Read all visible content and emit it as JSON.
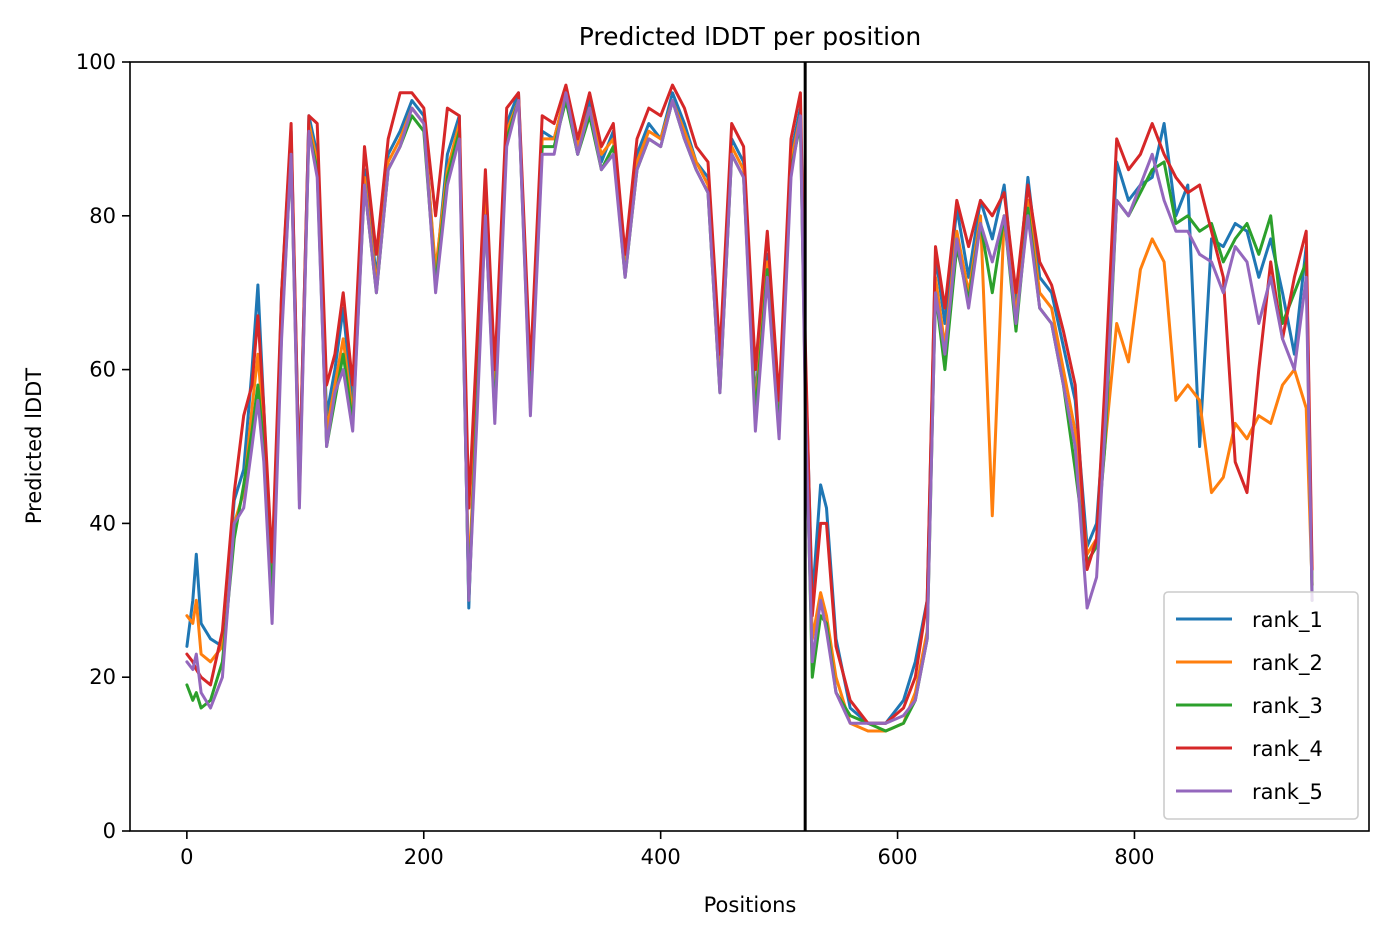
{
  "chart_data": {
    "type": "line",
    "title": "Predicted lDDT per position",
    "xlabel": "Positions",
    "ylabel": "Predicted lDDT",
    "xlim": [
      -48,
      998
    ],
    "ylim": [
      0,
      100
    ],
    "xticks": [
      0,
      200,
      400,
      600,
      800
    ],
    "yticks": [
      0,
      20,
      40,
      60,
      80,
      100
    ],
    "legend_position": "lower-right",
    "vline_x": 522,
    "series": [
      {
        "name": "rank_1",
        "color": "#1f77b4",
        "x": [
          0,
          5,
          8,
          12,
          20,
          30,
          40,
          48,
          55,
          60,
          65,
          72,
          80,
          88,
          95,
          103,
          110,
          118,
          125,
          132,
          140,
          150,
          160,
          170,
          180,
          190,
          200,
          210,
          220,
          230,
          238,
          245,
          252,
          260,
          270,
          280,
          290,
          300,
          310,
          320,
          330,
          340,
          350,
          360,
          370,
          380,
          390,
          400,
          410,
          420,
          430,
          440,
          450,
          460,
          470,
          480,
          490,
          500,
          510,
          518,
          522,
          528,
          535,
          540,
          548,
          560,
          575,
          590,
          605,
          615,
          625,
          632,
          640,
          650,
          660,
          670,
          680,
          690,
          700,
          710,
          720,
          730,
          740,
          750,
          760,
          768,
          775,
          785,
          795,
          805,
          815,
          825,
          835,
          845,
          855,
          865,
          875,
          885,
          895,
          905,
          915,
          925,
          935,
          945,
          950
        ],
        "values": [
          24,
          30,
          36,
          27,
          25,
          24,
          43,
          47,
          60,
          71,
          55,
          30,
          70,
          91,
          45,
          93,
          88,
          54,
          60,
          68,
          55,
          86,
          72,
          88,
          91,
          95,
          93,
          72,
          88,
          93,
          29,
          60,
          84,
          55,
          92,
          96,
          56,
          91,
          90,
          96,
          88,
          95,
          87,
          91,
          73,
          88,
          92,
          90,
          96,
          92,
          87,
          85,
          58,
          90,
          87,
          56,
          75,
          52,
          88,
          94,
          62,
          30,
          45,
          42,
          25,
          16,
          14,
          14,
          17,
          22,
          30,
          75,
          66,
          81,
          72,
          82,
          77,
          84,
          68,
          85,
          72,
          70,
          63,
          56,
          37,
          40,
          55,
          87,
          82,
          84,
          85,
          92,
          80,
          84,
          50,
          77,
          76,
          79,
          78,
          72,
          77,
          70,
          62,
          76,
          32
        ]
      },
      {
        "name": "rank_2",
        "color": "#ff7f0e",
        "x": [
          0,
          5,
          8,
          12,
          20,
          30,
          40,
          48,
          55,
          60,
          65,
          72,
          80,
          88,
          95,
          103,
          110,
          118,
          125,
          132,
          140,
          150,
          160,
          170,
          180,
          190,
          200,
          210,
          220,
          230,
          238,
          245,
          252,
          260,
          270,
          280,
          290,
          300,
          310,
          320,
          330,
          340,
          350,
          360,
          370,
          380,
          390,
          400,
          410,
          420,
          430,
          440,
          450,
          460,
          470,
          480,
          490,
          500,
          510,
          518,
          522,
          528,
          535,
          540,
          548,
          560,
          575,
          590,
          605,
          615,
          625,
          632,
          640,
          650,
          660,
          670,
          680,
          690,
          700,
          710,
          720,
          730,
          740,
          750,
          760,
          768,
          775,
          785,
          795,
          805,
          815,
          825,
          835,
          845,
          855,
          865,
          875,
          885,
          895,
          905,
          915,
          925,
          935,
          945,
          950
        ],
        "values": [
          28,
          27,
          30,
          23,
          22,
          24,
          40,
          44,
          55,
          62,
          52,
          33,
          68,
          89,
          43,
          92,
          87,
          52,
          58,
          64,
          54,
          85,
          71,
          87,
          90,
          94,
          92,
          73,
          86,
          92,
          32,
          58,
          82,
          56,
          91,
          95,
          57,
          90,
          90,
          96,
          89,
          94,
          88,
          90,
          74,
          87,
          91,
          90,
          95,
          91,
          87,
          84,
          60,
          89,
          86,
          55,
          74,
          53,
          87,
          93,
          60,
          25,
          31,
          28,
          20,
          14,
          13,
          13,
          14,
          18,
          26,
          72,
          63,
          78,
          70,
          80,
          41,
          80,
          67,
          82,
          70,
          68,
          60,
          52,
          36,
          38,
          50,
          66,
          61,
          73,
          77,
          74,
          56,
          58,
          56,
          44,
          46,
          53,
          51,
          54,
          53,
          58,
          60,
          55,
          32
        ]
      },
      {
        "name": "rank_3",
        "color": "#2ca02c",
        "x": [
          0,
          5,
          8,
          12,
          20,
          30,
          40,
          48,
          55,
          60,
          65,
          72,
          80,
          88,
          95,
          103,
          110,
          118,
          125,
          132,
          140,
          150,
          160,
          170,
          180,
          190,
          200,
          210,
          220,
          230,
          238,
          245,
          252,
          260,
          270,
          280,
          290,
          300,
          310,
          320,
          330,
          340,
          350,
          360,
          370,
          380,
          390,
          400,
          410,
          420,
          430,
          440,
          450,
          460,
          470,
          480,
          490,
          500,
          510,
          518,
          522,
          528,
          535,
          540,
          548,
          560,
          575,
          590,
          605,
          615,
          625,
          632,
          640,
          650,
          660,
          670,
          680,
          690,
          700,
          710,
          720,
          730,
          740,
          750,
          760,
          768,
          775,
          785,
          795,
          805,
          815,
          825,
          835,
          845,
          855,
          865,
          875,
          885,
          895,
          905,
          915,
          925,
          935,
          945,
          950
        ],
        "values": [
          19,
          17,
          18,
          16,
          17,
          22,
          38,
          45,
          52,
          58,
          50,
          30,
          65,
          88,
          44,
          91,
          86,
          50,
          56,
          62,
          53,
          84,
          70,
          86,
          89,
          93,
          91,
          71,
          85,
          91,
          30,
          56,
          80,
          54,
          90,
          95,
          55,
          89,
          89,
          95,
          88,
          93,
          86,
          89,
          72,
          86,
          90,
          89,
          95,
          90,
          86,
          83,
          57,
          88,
          85,
          54,
          73,
          52,
          86,
          92,
          58,
          20,
          28,
          27,
          18,
          15,
          14,
          13,
          14,
          17,
          25,
          70,
          60,
          76,
          69,
          79,
          70,
          80,
          65,
          81,
          68,
          66,
          58,
          47,
          35,
          37,
          50,
          82,
          80,
          83,
          86,
          87,
          79,
          80,
          78,
          79,
          74,
          77,
          79,
          75,
          80,
          66,
          70,
          74,
          30
        ]
      },
      {
        "name": "rank_4",
        "color": "#d62728",
        "x": [
          0,
          5,
          8,
          12,
          20,
          30,
          40,
          48,
          55,
          60,
          65,
          72,
          80,
          88,
          95,
          103,
          110,
          118,
          125,
          132,
          140,
          150,
          160,
          170,
          180,
          190,
          200,
          210,
          220,
          230,
          238,
          245,
          252,
          260,
          270,
          280,
          290,
          300,
          310,
          320,
          330,
          340,
          350,
          360,
          370,
          380,
          390,
          400,
          410,
          420,
          430,
          440,
          450,
          460,
          470,
          480,
          490,
          500,
          510,
          518,
          522,
          528,
          535,
          540,
          548,
          560,
          575,
          590,
          605,
          615,
          625,
          632,
          640,
          650,
          660,
          670,
          680,
          690,
          700,
          710,
          720,
          730,
          740,
          750,
          760,
          768,
          775,
          785,
          795,
          805,
          815,
          825,
          835,
          845,
          855,
          865,
          875,
          885,
          895,
          905,
          915,
          925,
          935,
          945,
          950
        ],
        "values": [
          23,
          22,
          21,
          20,
          19,
          26,
          44,
          54,
          58,
          67,
          55,
          35,
          70,
          92,
          45,
          93,
          92,
          58,
          62,
          70,
          58,
          89,
          75,
          90,
          96,
          96,
          94,
          80,
          94,
          93,
          42,
          64,
          86,
          60,
          94,
          96,
          60,
          93,
          92,
          97,
          90,
          96,
          89,
          92,
          75,
          90,
          94,
          93,
          97,
          94,
          89,
          87,
          62,
          92,
          89,
          60,
          78,
          56,
          90,
          96,
          64,
          28,
          40,
          40,
          24,
          17,
          14,
          14,
          16,
          20,
          30,
          76,
          68,
          82,
          76,
          82,
          80,
          83,
          70,
          84,
          74,
          71,
          65,
          58,
          34,
          38,
          58,
          90,
          86,
          88,
          92,
          88,
          85,
          83,
          84,
          78,
          72,
          48,
          44,
          60,
          74,
          64,
          72,
          78,
          34
        ]
      },
      {
        "name": "rank_5",
        "color": "#9467bd",
        "x": [
          0,
          5,
          8,
          12,
          20,
          30,
          40,
          48,
          55,
          60,
          65,
          72,
          80,
          88,
          95,
          103,
          110,
          118,
          125,
          132,
          140,
          150,
          160,
          170,
          180,
          190,
          200,
          210,
          220,
          230,
          238,
          245,
          252,
          260,
          270,
          280,
          290,
          300,
          310,
          320,
          330,
          340,
          350,
          360,
          370,
          380,
          390,
          400,
          410,
          420,
          430,
          440,
          450,
          460,
          470,
          480,
          490,
          500,
          510,
          518,
          522,
          528,
          535,
          540,
          548,
          560,
          575,
          590,
          605,
          615,
          625,
          632,
          640,
          650,
          660,
          670,
          680,
          690,
          700,
          710,
          720,
          730,
          740,
          750,
          760,
          768,
          775,
          785,
          795,
          805,
          815,
          825,
          835,
          845,
          855,
          865,
          875,
          885,
          895,
          905,
          915,
          925,
          935,
          945,
          950
        ],
        "values": [
          22,
          21,
          23,
          18,
          16,
          20,
          40,
          42,
          50,
          56,
          48,
          27,
          64,
          88,
          42,
          91,
          85,
          50,
          57,
          60,
          52,
          84,
          70,
          86,
          89,
          94,
          92,
          70,
          84,
          90,
          30,
          54,
          80,
          53,
          89,
          95,
          54,
          88,
          88,
          96,
          88,
          94,
          86,
          88,
          72,
          86,
          90,
          89,
          95,
          90,
          86,
          83,
          57,
          88,
          85,
          52,
          72,
          51,
          85,
          93,
          56,
          22,
          30,
          26,
          18,
          14,
          14,
          14,
          15,
          17,
          25,
          70,
          62,
          77,
          68,
          79,
          74,
          80,
          66,
          80,
          68,
          66,
          58,
          50,
          29,
          33,
          52,
          82,
          80,
          84,
          88,
          82,
          78,
          78,
          75,
          74,
          70,
          76,
          74,
          66,
          72,
          64,
          60,
          72,
          30
        ]
      }
    ]
  }
}
